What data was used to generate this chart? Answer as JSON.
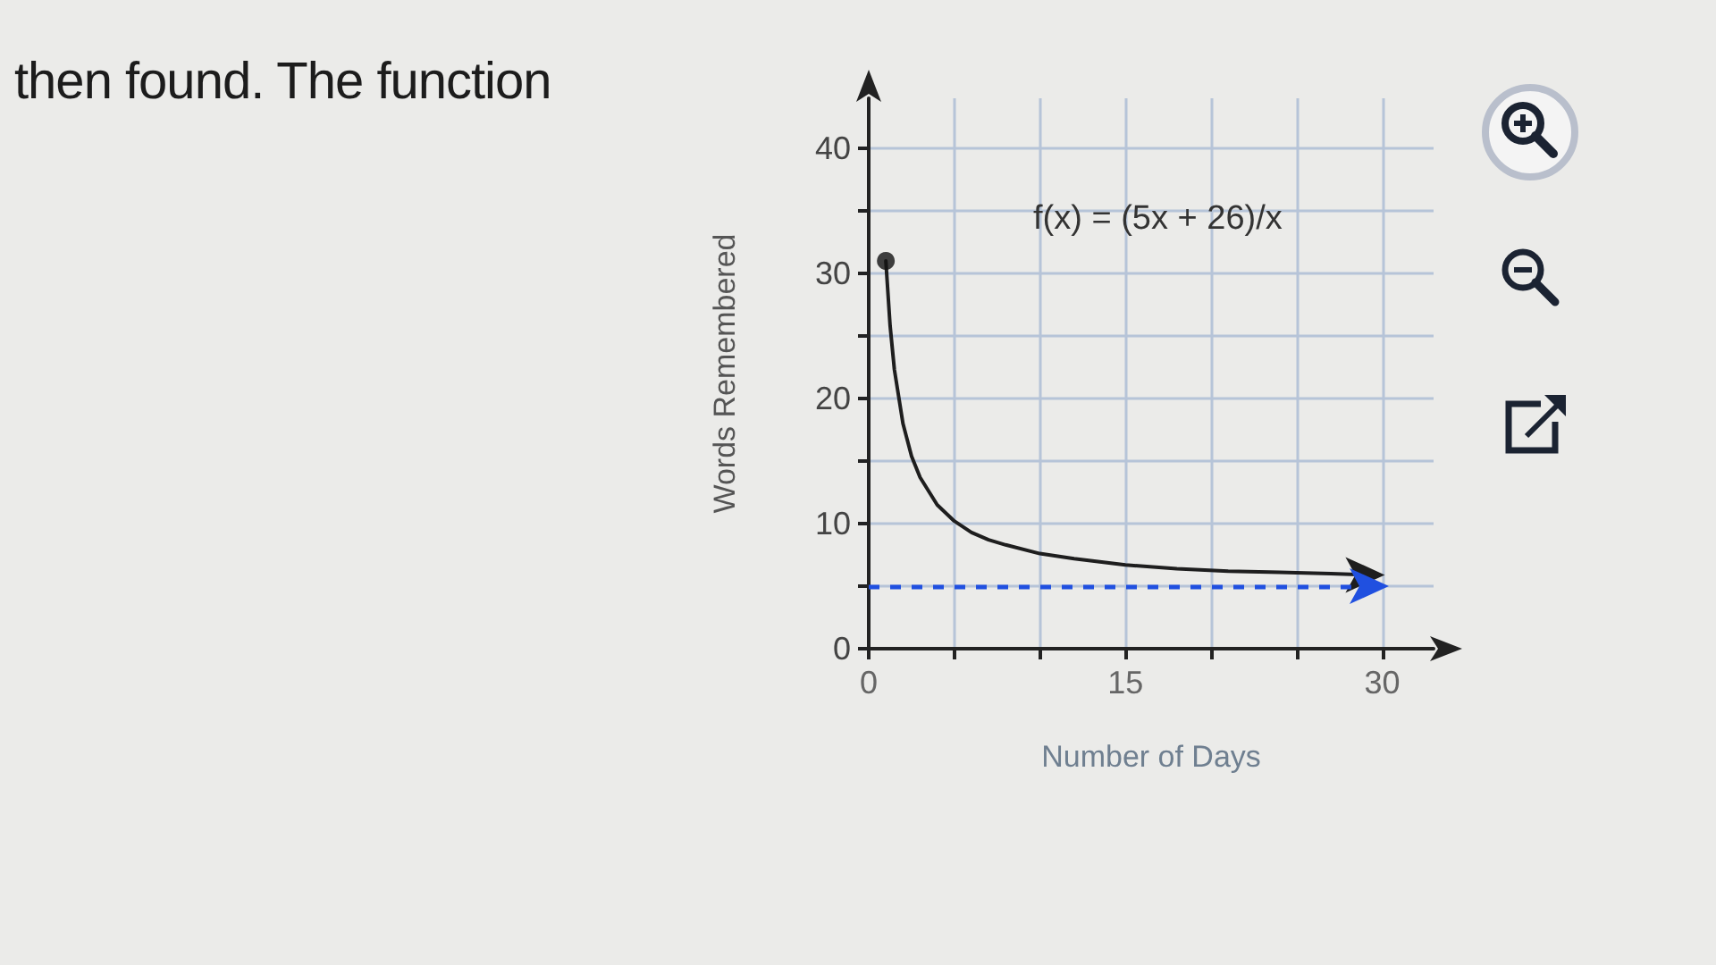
{
  "chart_data": {
    "type": "line",
    "xlabel": "Number of Days",
    "ylabel": "Words Remembered",
    "annotations": [
      "then found. The function",
      "f(x) = (5x + 26)/x"
    ],
    "series": [
      {
        "color": "#1e1e1e",
        "x": [
          1,
          1.25,
          1.5,
          2,
          2.5,
          3,
          4,
          5,
          6,
          7,
          8,
          10,
          12,
          15,
          18,
          21,
          24,
          27,
          29
        ],
        "values": [
          31,
          25.8,
          22.3,
          18,
          15.4,
          13.7,
          11.5,
          10.2,
          9.3,
          8.7,
          8.3,
          7.6,
          7.2,
          6.7,
          6.4,
          6.2,
          6.1,
          6,
          5.9
        ]
      },
      {
        "type": "scatter",
        "color": "#111111",
        "marker": "circle",
        "x": [
          1
        ],
        "values": [
          31
        ]
      }
    ],
    "ref_lines": [
      {
        "axis": "y",
        "value": 5,
        "color": "#2050e0",
        "line_style": "dashed"
      }
    ],
    "xlim": [
      0,
      33
    ],
    "xticks": [
      0,
      {
        "value": 5,
        "label": null
      },
      {
        "value": 10,
        "label": null
      },
      15,
      {
        "value": 20,
        "label": null
      },
      {
        "value": 25,
        "label": null
      },
      30
    ],
    "ylim": [
      0,
      44
    ],
    "yticks": [
      0,
      {
        "value": 5,
        "label": null
      },
      10,
      {
        "value": 15,
        "label": null
      },
      20,
      {
        "value": 25,
        "label": null
      },
      30,
      {
        "value": 35,
        "label": null
      },
      40
    ],
    "grid": true
  }
}
